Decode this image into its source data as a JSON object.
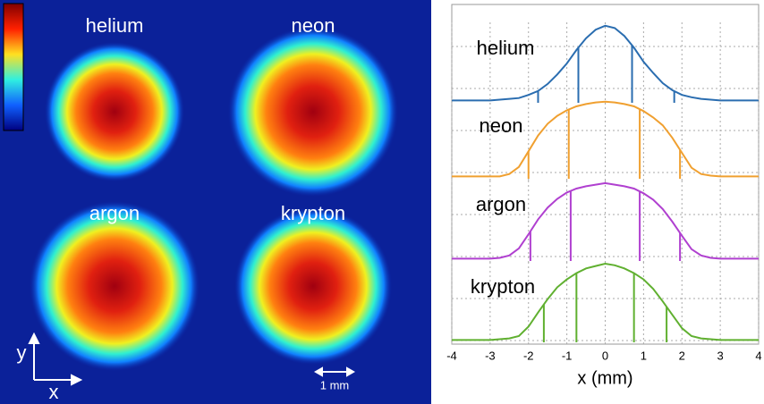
{
  "image": {
    "labels": [
      "helium",
      "neon",
      "argon",
      "krypton"
    ],
    "y_axis": "y",
    "x_axis": "x",
    "scale_bar": "1 mm"
  },
  "chart_data": [
    {
      "type": "line",
      "name": "helium",
      "color": "#2a6db0",
      "xlim": [
        -4,
        4
      ],
      "xticks": [
        -4,
        -3,
        -2,
        -1,
        0,
        1,
        2,
        3,
        4
      ],
      "ylim": [
        0,
        1
      ],
      "x": [
        -4,
        -3.75,
        -3.5,
        -3.25,
        -3,
        -2.75,
        -2.5,
        -2.25,
        -2,
        -1.75,
        -1.5,
        -1.25,
        -1,
        -0.75,
        -0.5,
        -0.25,
        0,
        0.25,
        0.5,
        0.75,
        1,
        1.25,
        1.5,
        1.75,
        2,
        2.25,
        2.5,
        2.75,
        3,
        3.25,
        3.5,
        3.75,
        4
      ],
      "values": [
        0.03,
        0.03,
        0.03,
        0.03,
        0.03,
        0.04,
        0.05,
        0.06,
        0.1,
        0.15,
        0.24,
        0.36,
        0.5,
        0.67,
        0.82,
        0.93,
        0.98,
        0.95,
        0.85,
        0.7,
        0.52,
        0.38,
        0.25,
        0.16,
        0.1,
        0.07,
        0.05,
        0.04,
        0.03,
        0.03,
        0.03,
        0.03,
        0.03
      ],
      "markers": [
        -1.75,
        -0.7,
        0.7,
        1.8
      ]
    },
    {
      "type": "line",
      "name": "neon",
      "color": "#f0a030",
      "xlim": [
        -4,
        4
      ],
      "xticks": [
        -4,
        -3,
        -2,
        -1,
        0,
        1,
        2,
        3,
        4
      ],
      "ylim": [
        0,
        1
      ],
      "x": [
        -4,
        -3.75,
        -3.5,
        -3.25,
        -3,
        -2.75,
        -2.5,
        -2.25,
        -2,
        -1.75,
        -1.5,
        -1.25,
        -1,
        -0.75,
        -0.5,
        -0.25,
        0,
        0.25,
        0.5,
        0.75,
        1,
        1.25,
        1.5,
        1.75,
        2,
        2.25,
        2.5,
        2.75,
        3,
        3.25,
        3.5,
        3.75,
        4
      ],
      "values": [
        0.03,
        0.03,
        0.03,
        0.03,
        0.03,
        0.03,
        0.06,
        0.15,
        0.35,
        0.55,
        0.7,
        0.8,
        0.87,
        0.92,
        0.95,
        0.97,
        0.98,
        0.97,
        0.95,
        0.92,
        0.86,
        0.78,
        0.68,
        0.52,
        0.33,
        0.14,
        0.06,
        0.04,
        0.03,
        0.03,
        0.03,
        0.03,
        0.03
      ],
      "markers": [
        -2,
        -0.95,
        0.9,
        1.95
      ]
    },
    {
      "type": "line",
      "name": "argon",
      "color": "#b040d0",
      "xlim": [
        -4,
        4
      ],
      "xticks": [
        -4,
        -3,
        -2,
        -1,
        0,
        1,
        2,
        3,
        4
      ],
      "ylim": [
        0,
        1
      ],
      "x": [
        -4,
        -3.75,
        -3.5,
        -3.25,
        -3,
        -2.75,
        -2.5,
        -2.25,
        -2,
        -1.75,
        -1.5,
        -1.25,
        -1,
        -0.75,
        -0.5,
        -0.25,
        0,
        0.25,
        0.5,
        0.75,
        1,
        1.25,
        1.5,
        1.75,
        2,
        2.25,
        2.5,
        2.75,
        3,
        3.25,
        3.5,
        3.75,
        4
      ],
      "values": [
        0.03,
        0.03,
        0.03,
        0.03,
        0.03,
        0.04,
        0.07,
        0.16,
        0.34,
        0.53,
        0.68,
        0.79,
        0.87,
        0.92,
        0.95,
        0.97,
        0.99,
        0.97,
        0.95,
        0.92,
        0.86,
        0.78,
        0.66,
        0.5,
        0.32,
        0.15,
        0.07,
        0.04,
        0.03,
        0.03,
        0.03,
        0.03,
        0.03
      ],
      "markers": [
        -1.95,
        -0.9,
        0.9,
        1.95
      ]
    },
    {
      "type": "line",
      "name": "krypton",
      "color": "#60b030",
      "xlim": [
        -4,
        4
      ],
      "xticks": [
        -4,
        -3,
        -2,
        -1,
        0,
        1,
        2,
        3,
        4
      ],
      "ylim": [
        0,
        1
      ],
      "xlabel": "x (mm)",
      "x": [
        -4,
        -3.75,
        -3.5,
        -3.25,
        -3,
        -2.75,
        -2.5,
        -2.25,
        -2,
        -1.75,
        -1.5,
        -1.25,
        -1,
        -0.75,
        -0.5,
        -0.25,
        0,
        0.25,
        0.5,
        0.75,
        1,
        1.25,
        1.5,
        1.75,
        2,
        2.25,
        2.5,
        2.75,
        3,
        3.25,
        3.5,
        3.75,
        4
      ],
      "values": [
        0.03,
        0.03,
        0.03,
        0.03,
        0.03,
        0.04,
        0.05,
        0.08,
        0.2,
        0.38,
        0.55,
        0.7,
        0.8,
        0.88,
        0.94,
        0.97,
        1,
        0.98,
        0.94,
        0.88,
        0.8,
        0.68,
        0.52,
        0.35,
        0.18,
        0.08,
        0.05,
        0.04,
        0.03,
        0.03,
        0.03,
        0.03,
        0.03
      ],
      "markers": [
        -1.6,
        -0.75,
        0.75,
        1.6
      ]
    }
  ]
}
